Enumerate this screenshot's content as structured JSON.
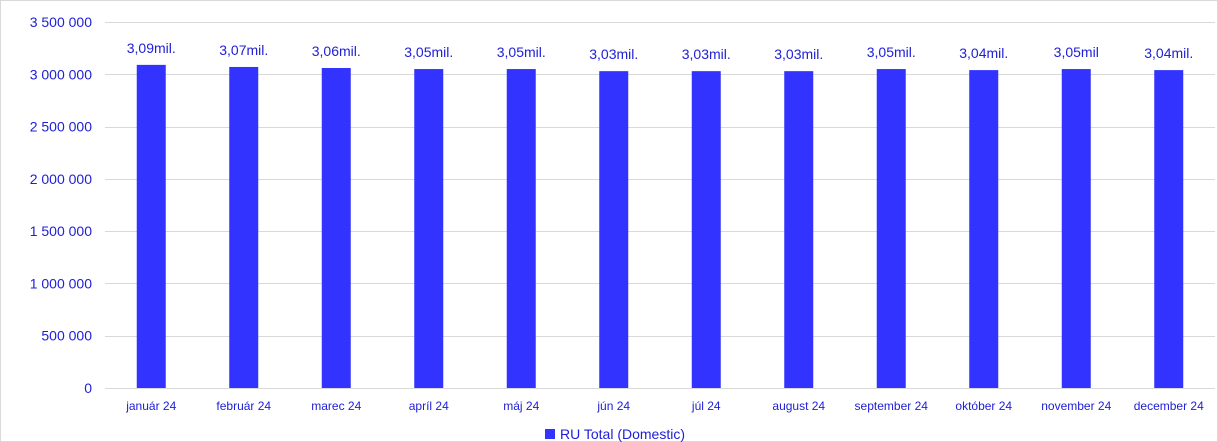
{
  "chart_data": {
    "type": "bar",
    "categories": [
      "január 24",
      "február 24",
      "marec 24",
      "apríl 24",
      "máj 24",
      "jún 24",
      "júl 24",
      "august 24",
      "september 24",
      "október 24",
      "november 24",
      "december 24"
    ],
    "series": [
      {
        "name": "RU Total (Domestic)",
        "values": [
          3090000,
          3070000,
          3060000,
          3050000,
          3050000,
          3030000,
          3030000,
          3030000,
          3050000,
          3040000,
          3050000,
          3040000
        ],
        "data_labels": [
          "3,09mil.",
          "3,07mil.",
          "3,06mil.",
          "3,05mil.",
          "3,05mil.",
          "3,03mil.",
          "3,03mil.",
          "3,03mil.",
          "3,05mil.",
          "3,04mil.",
          "3,05mil",
          "3,04mil."
        ],
        "color": "#3333ff"
      }
    ],
    "ylim": [
      0,
      3500000
    ],
    "yticks": [
      0,
      500000,
      1000000,
      1500000,
      2000000,
      2500000,
      3000000,
      3500000
    ],
    "ytick_labels": [
      "0",
      "500 000",
      "1 000 000",
      "1 500 000",
      "2 000 000",
      "2 500 000",
      "3 000 000",
      "3 500 000"
    ],
    "grid": true,
    "legend": "bottom",
    "title": "",
    "xlabel": "",
    "ylabel": ""
  },
  "colors": {
    "bar": "#3333ff",
    "text": "#2020d8",
    "grid": "#d9d9d9"
  }
}
